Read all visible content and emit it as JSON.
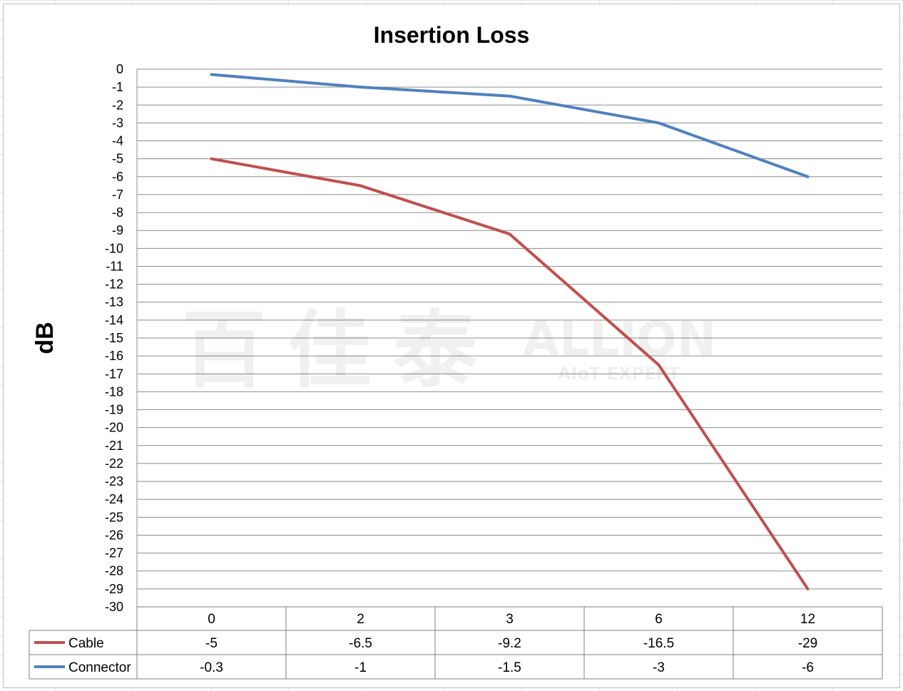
{
  "chart_data": {
    "type": "line",
    "title": "Insertion Loss",
    "ylabel": "dB",
    "xlabel": "",
    "categories": [
      "0",
      "2",
      "3",
      "6",
      "12"
    ],
    "ylim": [
      -30,
      0
    ],
    "ytick_step": 1,
    "grid": true,
    "legend": "data-table",
    "series": [
      {
        "name": "Cable",
        "values": [
          -5,
          -6.5,
          -9.2,
          -16.5,
          -29
        ],
        "labels": [
          "-5",
          "-6.5",
          "-9.2",
          "-16.5",
          "-29"
        ],
        "color": "#c0504d"
      },
      {
        "name": "Connector",
        "values": [
          -0.3,
          -1,
          -1.5,
          -3,
          -6
        ],
        "labels": [
          "-0.3",
          "-1",
          "-1.5",
          "-3",
          "-6"
        ],
        "color": "#4f81bd"
      }
    ]
  },
  "watermark": {
    "cjk": "百佳泰",
    "brand": "ALLION",
    "tagline": "AIoT EXPERT"
  }
}
